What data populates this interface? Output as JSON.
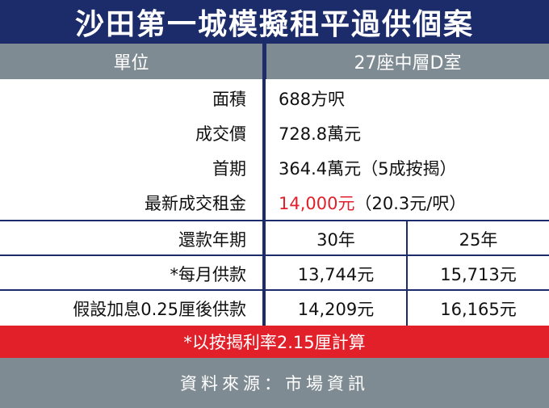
{
  "title": "沙田第一城模擬租平過供個案",
  "header": {
    "col1": "單位",
    "col2": "27座中層D室"
  },
  "rows": {
    "area": {
      "label": "面積",
      "value": "688方呎"
    },
    "price": {
      "label": "成交價",
      "value": "728.8萬元"
    },
    "down": {
      "label": "首期",
      "value": "364.4萬元（5成按揭）"
    },
    "rent": {
      "label": "最新成交租金",
      "value_red": "14,000元",
      "value_rest": "（20.3元/呎）"
    },
    "term": {
      "label": "還款年期",
      "y30": "30年",
      "y25": "25年"
    },
    "monthly": {
      "label": "*每月供款",
      "y30": "13,744元",
      "y25": "15,713元"
    },
    "raised": {
      "label": "假設加息0.25厘後供款",
      "y30": "14,209元",
      "y25": "16,165元"
    }
  },
  "note": "*以按揭利率2.15厘計算",
  "source": "資料來源：市場資訊",
  "colors": {
    "navy": "#1c2b6a",
    "gray": "#7f8b93",
    "red": "#e2202a"
  }
}
